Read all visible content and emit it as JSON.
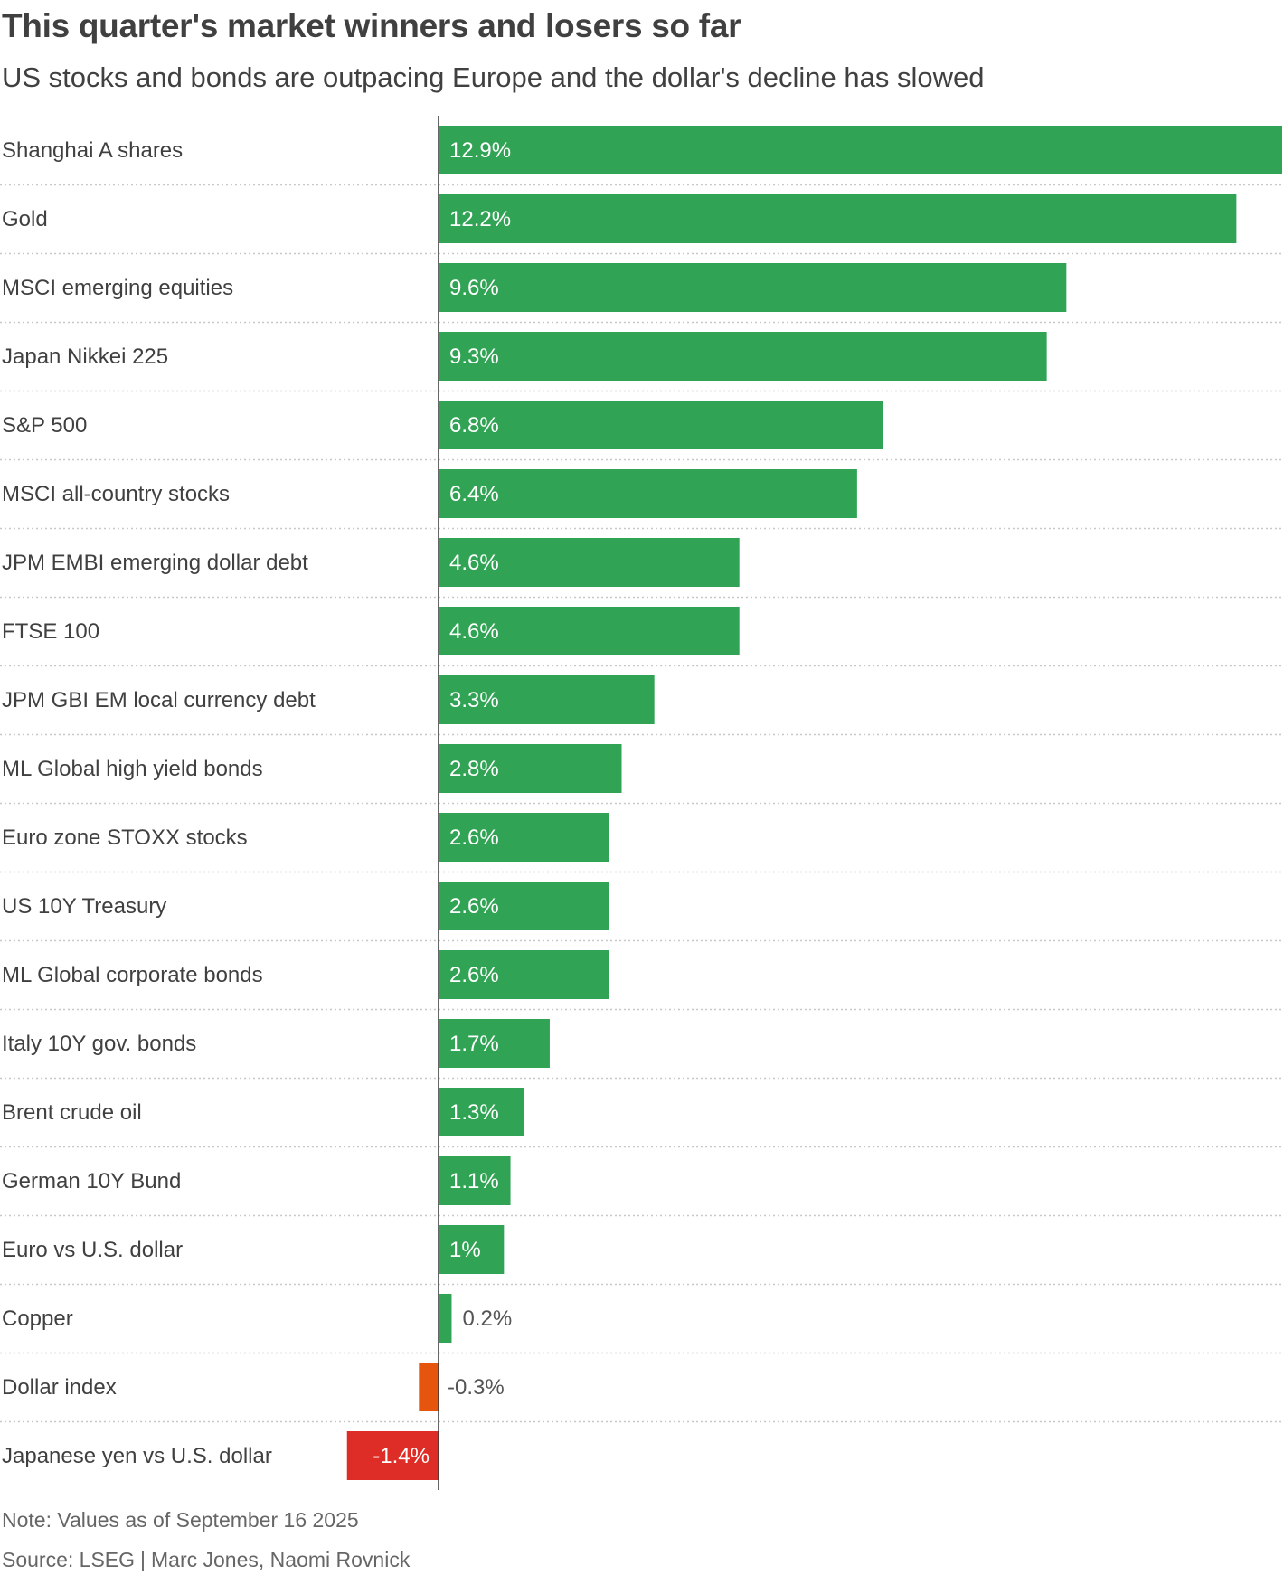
{
  "title": "This quarter's market winners and losers so far",
  "subtitle": "US stocks and bonds are outpacing Europe and the dollar's decline has slowed",
  "note": "Note: Values as of September 16 2025",
  "source": "Source: LSEG",
  "credit": "Marc Jones, Naomi Rovnick",
  "colors": {
    "positive": "#31a354",
    "mild_negative": "#e6550d",
    "negative": "#de2d26",
    "label": "#404040",
    "gridline": "#c8c8c8",
    "axis": "#333333"
  },
  "chart_data": {
    "type": "bar",
    "orientation": "horizontal",
    "grid": false,
    "row_separators": "dotted",
    "categories": [
      "Shanghai A shares",
      "Gold",
      "MSCI emerging equities",
      "Japan Nikkei 225",
      "S&P 500",
      "MSCI all-country stocks",
      "JPM EMBI emerging dollar debt",
      "FTSE 100",
      "JPM GBI EM local currency debt",
      "ML Global high yield bonds",
      "Euro zone STOXX stocks",
      "US 10Y Treasury",
      "ML Global corporate bonds",
      "Italy 10Y gov. bonds",
      "Brent crude oil",
      "German 10Y Bund",
      "Euro vs U.S. dollar",
      "Copper",
      "Dollar index",
      "Japanese yen vs U.S. dollar"
    ],
    "values": [
      12.9,
      12.2,
      9.6,
      9.3,
      6.8,
      6.4,
      4.6,
      4.6,
      3.3,
      2.8,
      2.6,
      2.6,
      2.6,
      1.7,
      1.3,
      1.1,
      1.0,
      0.2,
      -0.3,
      -1.4
    ],
    "labels": [
      "12.9%",
      "12.2%",
      "9.6%",
      "9.3%",
      "6.8%",
      "6.4%",
      "4.6%",
      "4.6%",
      "3.3%",
      "2.8%",
      "2.6%",
      "2.6%",
      "2.6%",
      "1.7%",
      "1.3%",
      "1.1%",
      "1%",
      "0.2%",
      "-0.3%",
      "-1.4%"
    ],
    "bar_colors": [
      "#31a354",
      "#31a354",
      "#31a354",
      "#31a354",
      "#31a354",
      "#31a354",
      "#31a354",
      "#31a354",
      "#31a354",
      "#31a354",
      "#31a354",
      "#31a354",
      "#31a354",
      "#31a354",
      "#31a354",
      "#31a354",
      "#31a354",
      "#31a354",
      "#e6550d",
      "#de2d26"
    ],
    "xlim": [
      -1.4,
      12.9
    ],
    "title": "This quarter's market winners and losers so far",
    "xlabel": "",
    "ylabel": ""
  }
}
